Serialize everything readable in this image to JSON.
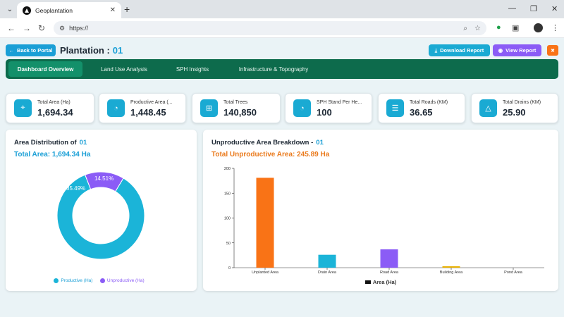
{
  "browser": {
    "tab_title": "Geoplantation",
    "url": "https://"
  },
  "header": {
    "back_label": "Back to Portal",
    "title": "Plantation :",
    "title_id": "01",
    "download_label": "Download Report",
    "view_label": "View Report",
    "close_label": "✖"
  },
  "nav": {
    "tabs": [
      {
        "label": "Dashboard Overview",
        "active": true
      },
      {
        "label": "Land Use Analysis",
        "active": false
      },
      {
        "label": "SPH Insights",
        "active": false
      },
      {
        "label": "Infrastructure & Topography",
        "active": false
      }
    ]
  },
  "stats": [
    {
      "label": "Total Area (Ha)",
      "value": "1,694.34",
      "icon": "location-pin-icon"
    },
    {
      "label": "Productive Area (...",
      "value": "1,448.45",
      "icon": "pie-chart-icon"
    },
    {
      "label": "Total Trees",
      "value": "140,850",
      "icon": "grid-icon"
    },
    {
      "label": "SPH Stand Per He...",
      "value": "100",
      "icon": "pie-chart-icon"
    },
    {
      "label": "Total Roads (KM)",
      "value": "36.65",
      "icon": "road-icon"
    },
    {
      "label": "Total Drains (KM)",
      "value": "25.90",
      "icon": "warning-triangle-icon"
    }
  ],
  "area_panel": {
    "title": "Area Distribution of",
    "title_id": "01",
    "subtitle": "Total Area: 1,694.34 Ha",
    "subtitle_color": "#1a9fd6",
    "chart_data": {
      "type": "pie",
      "donut": true,
      "slices": [
        {
          "label": "Productive (Ha)",
          "value": 85.49,
          "display": "85.49%",
          "color": "#1bb4d8"
        },
        {
          "label": "Unproductive (Ha)",
          "value": 14.51,
          "display": "14.51%",
          "color": "#8b5cf6"
        }
      ],
      "legend_position": "bottom"
    }
  },
  "unproductive_panel": {
    "title": "Unproductive Area Breakdown -",
    "title_id": "01",
    "subtitle": "Total Unproductive Area: 245.89 Ha",
    "subtitle_color": "#ea7a1c",
    "chart_data": {
      "type": "bar",
      "categories": [
        "Unplanted Area",
        "Drain Area",
        "Road Area",
        "Building Area",
        "Pond Area"
      ],
      "values": [
        181,
        26,
        37,
        3,
        0.5
      ],
      "colors": [
        "#f97316",
        "#1bb4d8",
        "#8b5cf6",
        "#eab308",
        "#cccccc"
      ],
      "ylim": [
        0,
        200
      ],
      "yticks": [
        "0",
        "50",
        "100",
        "150",
        "200"
      ],
      "legend": "Area (Ha)",
      "legend_position": "bottom",
      "grid": false
    }
  }
}
